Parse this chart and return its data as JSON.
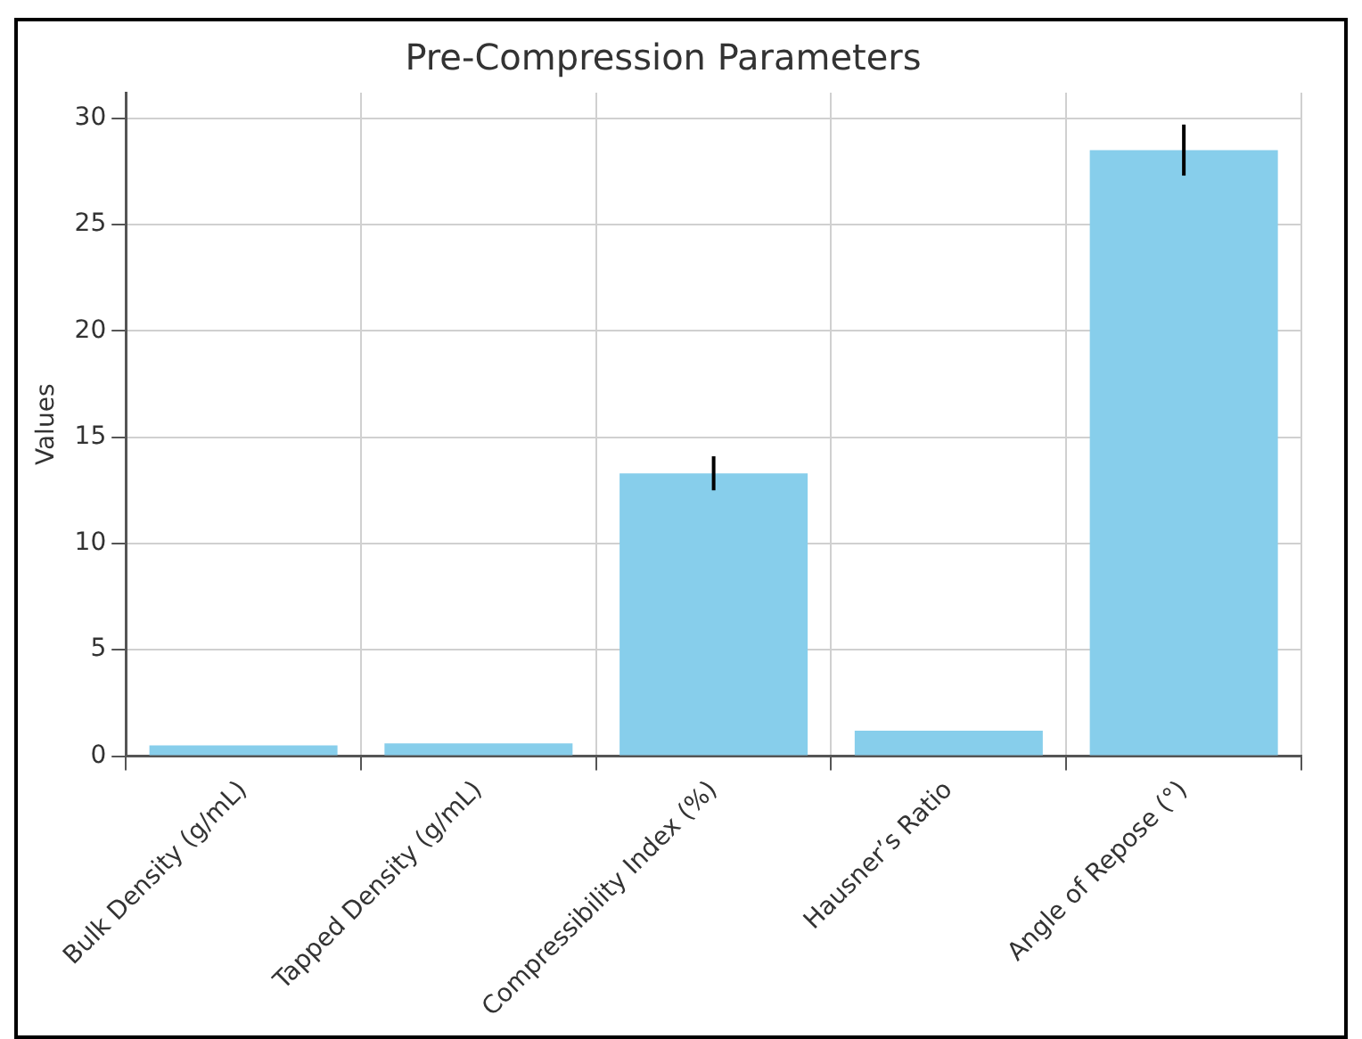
{
  "chart_data": {
    "type": "bar",
    "title": "Pre-Compression Parameters",
    "ylabel": "Values",
    "categories": [
      "Bulk Density (g/mL)",
      "Tapped Density (g/mL)",
      "Compressibility Index (%)",
      "Hausner’s Ratio",
      "Angle of Repose (°)"
    ],
    "values": [
      0.5,
      0.6,
      13.3,
      1.2,
      28.5
    ],
    "errors": [
      null,
      null,
      0.8,
      null,
      1.2
    ],
    "color": "#87ceeb",
    "ylim": [
      0,
      31.2
    ],
    "yticks": [
      0,
      5,
      10,
      15,
      20,
      25,
      30
    ],
    "grid": true,
    "legend": false
  }
}
